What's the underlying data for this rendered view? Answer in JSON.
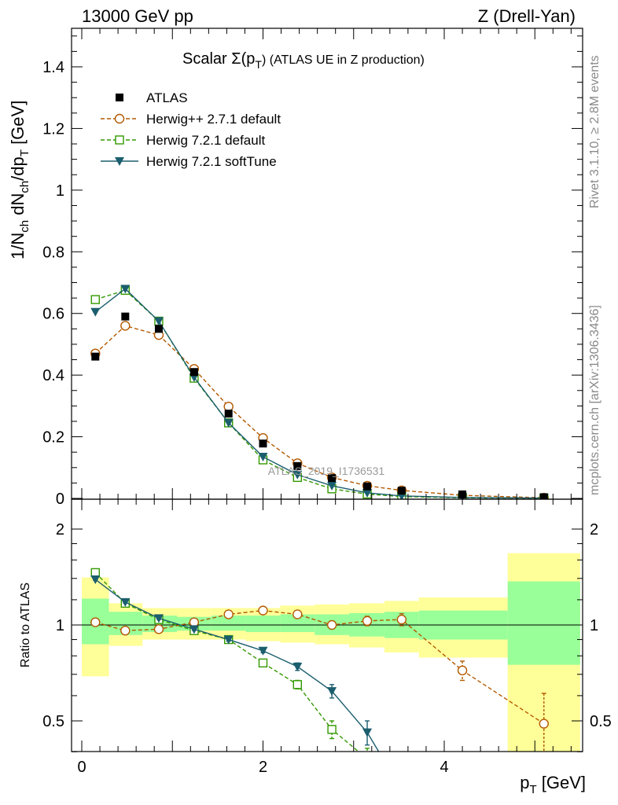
{
  "header": {
    "left": "13000 GeV pp",
    "right": "Z (Drell-Yan)"
  },
  "side_labels": {
    "rivet": "Rivet 3.1.10, ≥ 2.8M events",
    "mcplots": "mcplots.cern.ch [arXiv:1306.3436]"
  },
  "watermark": "ATLAS_2019_I1736531",
  "colors": {
    "atlas": "#000000",
    "herwigpp": "#b35900",
    "herwig721": "#339900",
    "softtune": "#1b5e6e",
    "band_inner": "#99ff99",
    "band_outer": "#ffff99"
  },
  "chart_data": [
    {
      "type": "scatter",
      "title_parts": {
        "prefix": "Scalar Σ(p",
        "sub": "T",
        "suffix": ") (ATLAS UE in Z production)"
      },
      "ylabel_parts": [
        "1/N",
        "ch",
        " dN",
        "ch",
        "/dp",
        "T",
        " [GeV]"
      ],
      "ylim": [
        0,
        1.5
      ],
      "xlim": [
        -0.1,
        5.6
      ],
      "y_ticks": [
        0,
        0.2,
        0.4,
        0.6,
        0.8,
        1,
        1.2,
        1.4
      ],
      "y_tick_labels": [
        "0",
        "0.2",
        "0.4",
        "0.6",
        "0.8",
        "1",
        "1.2",
        "1.4"
      ],
      "x": [
        0.15,
        0.48,
        0.85,
        1.24,
        1.62,
        2.0,
        2.38,
        2.76,
        3.15,
        3.53,
        4.2,
        5.1
      ],
      "series": [
        {
          "name": "ATLAS",
          "style": "data",
          "values": [
            0.46,
            0.59,
            0.55,
            0.41,
            0.275,
            0.178,
            0.105,
            0.066,
            0.039,
            0.025,
            0.013,
            0.004
          ]
        },
        {
          "name": "Herwig++ 2.7.1 default",
          "style": "circle",
          "values": [
            0.47,
            0.56,
            0.53,
            0.42,
            0.298,
            0.196,
            0.114,
            0.068,
            0.041,
            0.026,
            0.01,
            0.002
          ]
        },
        {
          "name": "Herwig 7.2.1 default",
          "style": "square",
          "values": [
            0.645,
            0.675,
            0.575,
            0.39,
            0.245,
            0.125,
            0.068,
            0.031,
            0.014,
            0.006,
            0.002,
            0.0005
          ]
        },
        {
          "name": "Herwig 7.2.1 softTune",
          "style": "triangle",
          "values": [
            0.605,
            0.68,
            0.575,
            0.393,
            0.245,
            0.135,
            0.077,
            0.041,
            0.018,
            0.008,
            0.003,
            0.001
          ]
        }
      ],
      "legend": {
        "position": "top-left",
        "entries": [
          "ATLAS",
          "Herwig++ 2.7.1 default",
          "Herwig 7.2.1 default",
          "Herwig 7.2.1 softTune"
        ]
      }
    },
    {
      "type": "line",
      "ylabel": "Ratio to ATLAS",
      "xlabel_parts": {
        "main": "p",
        "sub": "T",
        "suffix": " [GeV]"
      },
      "ylim": [
        0.35,
        2.2
      ],
      "xlim": [
        -0.1,
        5.6
      ],
      "y_ticks": [
        0.5,
        1,
        2
      ],
      "y_tick_labels": [
        "0.5",
        "1",
        "2"
      ],
      "x_ticks": [
        0,
        2,
        4
      ],
      "x_tick_labels": [
        "0",
        "2",
        "4"
      ],
      "bins": [
        {
          "lo": 0.0,
          "hi": 0.3,
          "inner": [
            0.87,
            1.21
          ],
          "outer": [
            0.69,
            1.41
          ]
        },
        {
          "lo": 0.3,
          "hi": 0.67,
          "inner": [
            0.93,
            1.1
          ],
          "outer": [
            0.86,
            1.17
          ]
        },
        {
          "lo": 0.67,
          "hi": 1.05,
          "inner": [
            0.95,
            1.07
          ],
          "outer": [
            0.9,
            1.13
          ]
        },
        {
          "lo": 1.05,
          "hi": 1.43,
          "inner": [
            0.96,
            1.06
          ],
          "outer": [
            0.9,
            1.13
          ]
        },
        {
          "lo": 1.43,
          "hi": 1.81,
          "inner": [
            0.96,
            1.07
          ],
          "outer": [
            0.9,
            1.13
          ]
        },
        {
          "lo": 1.81,
          "hi": 2.19,
          "inner": [
            0.95,
            1.07
          ],
          "outer": [
            0.89,
            1.13
          ]
        },
        {
          "lo": 2.19,
          "hi": 2.57,
          "inner": [
            0.95,
            1.08
          ],
          "outer": [
            0.88,
            1.15
          ]
        },
        {
          "lo": 2.57,
          "hi": 2.95,
          "inner": [
            0.93,
            1.08
          ],
          "outer": [
            0.87,
            1.16
          ]
        },
        {
          "lo": 2.95,
          "hi": 3.34,
          "inner": [
            0.92,
            1.09
          ],
          "outer": [
            0.85,
            1.17
          ]
        },
        {
          "lo": 3.34,
          "hi": 3.72,
          "inner": [
            0.91,
            1.1
          ],
          "outer": [
            0.82,
            1.19
          ]
        },
        {
          "lo": 3.72,
          "hi": 4.7,
          "inner": [
            0.9,
            1.11
          ],
          "outer": [
            0.79,
            1.22
          ]
        },
        {
          "lo": 4.7,
          "hi": 5.5,
          "inner": [
            0.75,
            1.37
          ],
          "outer": [
            0.35,
            1.68
          ]
        }
      ],
      "series": [
        {
          "name": "Herwig++ 2.7.1 default",
          "style": "circle",
          "x": [
            0.15,
            0.48,
            0.85,
            1.24,
            1.62,
            2.0,
            2.38,
            2.76,
            3.15,
            3.53,
            4.2,
            5.1
          ],
          "values": [
            1.02,
            0.96,
            0.97,
            1.02,
            1.08,
            1.11,
            1.08,
            1.0,
            1.03,
            1.04,
            0.72,
            0.49
          ],
          "errors": [
            0.005,
            0.005,
            0.006,
            0.008,
            0.01,
            0.012,
            0.015,
            0.025,
            0.035,
            0.045,
            0.05,
            0.12
          ]
        },
        {
          "name": "Herwig 7.2.1 default",
          "style": "square",
          "x": [
            0.15,
            0.48,
            0.85,
            1.24,
            1.62,
            2.0,
            2.38,
            2.76,
            3.15
          ],
          "values": [
            1.46,
            1.17,
            1.04,
            0.96,
            0.9,
            0.76,
            0.65,
            0.47,
            0.38
          ],
          "errors": [
            0.01,
            0.008,
            0.008,
            0.008,
            0.01,
            0.012,
            0.02,
            0.03,
            0.03
          ]
        },
        {
          "name": "Herwig 7.2.1 softTune",
          "style": "triangle",
          "x": [
            0.15,
            0.48,
            0.85,
            1.24,
            1.62,
            2.0,
            2.38,
            2.76,
            3.15,
            3.4
          ],
          "values": [
            1.39,
            1.18,
            1.05,
            0.97,
            0.9,
            0.83,
            0.74,
            0.62,
            0.46,
            0.35
          ],
          "errors": [
            0.01,
            0.008,
            0.008,
            0.008,
            0.01,
            0.012,
            0.02,
            0.03,
            0.04,
            0.0
          ]
        }
      ]
    }
  ]
}
